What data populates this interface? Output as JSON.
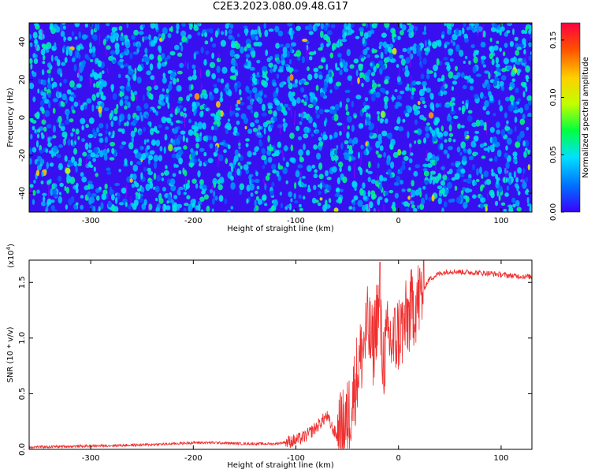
{
  "figure_title": "C2E3.2023.080.09.48.G17",
  "chart_data": [
    {
      "type": "heatmap",
      "title": "C2E3.2023.080.09.48.G17",
      "xlabel": "Height of straight line (km)",
      "ylabel": "Frequency (Hz)",
      "xlim": [
        -360,
        130
      ],
      "ylim": [
        -50,
        50
      ],
      "x_ticks": [
        -300,
        -200,
        -100,
        0,
        100
      ],
      "y_ticks": [
        -40,
        -20,
        0,
        20,
        40
      ],
      "colorbar": {
        "label": "Normalized spectral amplitude",
        "range": [
          0,
          0.165
        ],
        "ticks": [
          "0.00",
          "0.05",
          "0.10",
          "0.15"
        ],
        "colormap": [
          "#3a00ff",
          "#0070ff",
          "#00e0ff",
          "#00ff40",
          "#c0ff00",
          "#ffd000",
          "#ff5000",
          "#ff0040"
        ]
      },
      "description_values": {
        "background_level": 0.015,
        "speckle_level_typical": 0.05,
        "speckle_level_max": 0.12
      }
    },
    {
      "type": "line",
      "xlabel": "Height of straight line (km)",
      "ylabel": "SNR (10 * v/v)",
      "y_scale_label": "(x10",
      "y_scale_exp": "4",
      "xlim": [
        -360,
        130
      ],
      "ylim": [
        0,
        1.7
      ],
      "x_ticks": [
        -300,
        -200,
        -100,
        0,
        100
      ],
      "y_ticks": [
        "0.0",
        "0.5",
        "1.0",
        "1.5"
      ],
      "series": [
        {
          "color": "#f03030",
          "points": [
            [
              -360,
              0.02
            ],
            [
              -300,
              0.03
            ],
            [
              -250,
              0.04
            ],
            [
              -220,
              0.05
            ],
            [
              -200,
              0.06
            ],
            [
              -180,
              0.06
            ],
            [
              -150,
              0.05
            ],
            [
              -120,
              0.05
            ],
            [
              -100,
              0.08
            ],
            [
              -90,
              0.12
            ],
            [
              -80,
              0.2
            ],
            [
              -70,
              0.3
            ],
            [
              -65,
              0.2
            ],
            [
              -60,
              0.12
            ],
            [
              -55,
              0.15
            ],
            [
              -50,
              0.25
            ],
            [
              -45,
              0.45
            ],
            [
              -40,
              0.7
            ],
            [
              -35,
              0.9
            ],
            [
              -30,
              1.1
            ],
            [
              -25,
              0.9
            ],
            [
              -20,
              1.3
            ],
            [
              -15,
              0.8
            ],
            [
              -10,
              1.0
            ],
            [
              -5,
              0.95
            ],
            [
              0,
              1.05
            ],
            [
              5,
              1.1
            ],
            [
              10,
              1.2
            ],
            [
              15,
              1.3
            ],
            [
              20,
              1.35
            ],
            [
              25,
              1.45
            ],
            [
              30,
              1.53
            ],
            [
              40,
              1.58
            ],
            [
              50,
              1.6
            ],
            [
              70,
              1.59
            ],
            [
              90,
              1.58
            ],
            [
              110,
              1.56
            ],
            [
              130,
              1.55
            ]
          ],
          "spike_max": 1.68,
          "spike_x": -18
        }
      ]
    }
  ]
}
